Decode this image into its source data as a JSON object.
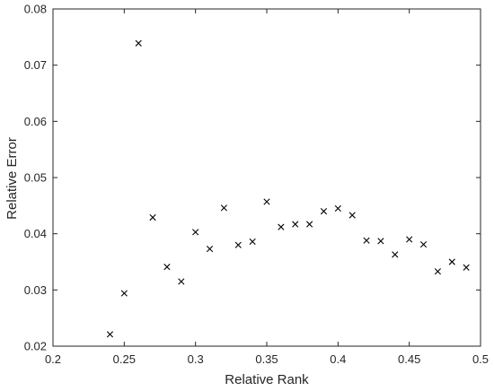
{
  "chart_data": {
    "type": "scatter",
    "title": "",
    "xlabel": "Relative Rank",
    "ylabel": "Relative Error",
    "xlim": [
      0.2,
      0.5
    ],
    "ylim": [
      0.02,
      0.08
    ],
    "xticks": [
      0.2,
      0.25,
      0.3,
      0.35,
      0.4,
      0.45,
      0.5
    ],
    "yticks": [
      0.02,
      0.03,
      0.04,
      0.05,
      0.06,
      0.07,
      0.08
    ],
    "xtick_labels": [
      "0.2",
      "0.25",
      "0.3",
      "0.35",
      "0.4",
      "0.45",
      "0.5"
    ],
    "ytick_labels": [
      "0.02",
      "0.03",
      "0.04",
      "0.05",
      "0.06",
      "0.07",
      "0.08"
    ],
    "marker": "x",
    "grid": false,
    "colors": {
      "marker": "#000000",
      "axis": "#262626"
    },
    "series": [
      {
        "x": [
          0.24,
          0.25,
          0.26,
          0.27,
          0.28,
          0.29,
          0.3,
          0.31,
          0.32,
          0.33,
          0.34,
          0.35,
          0.36,
          0.37,
          0.38,
          0.39,
          0.4,
          0.41,
          0.42,
          0.43,
          0.44,
          0.45,
          0.46,
          0.47,
          0.48,
          0.49
        ],
        "y": [
          0.0221,
          0.0294,
          0.0739,
          0.0429,
          0.0341,
          0.0315,
          0.0403,
          0.0373,
          0.0446,
          0.038,
          0.0386,
          0.0457,
          0.0412,
          0.0417,
          0.0417,
          0.044,
          0.0445,
          0.0433,
          0.0388,
          0.0387,
          0.0363,
          0.039,
          0.0381,
          0.0333,
          0.035,
          0.034
        ]
      }
    ]
  }
}
